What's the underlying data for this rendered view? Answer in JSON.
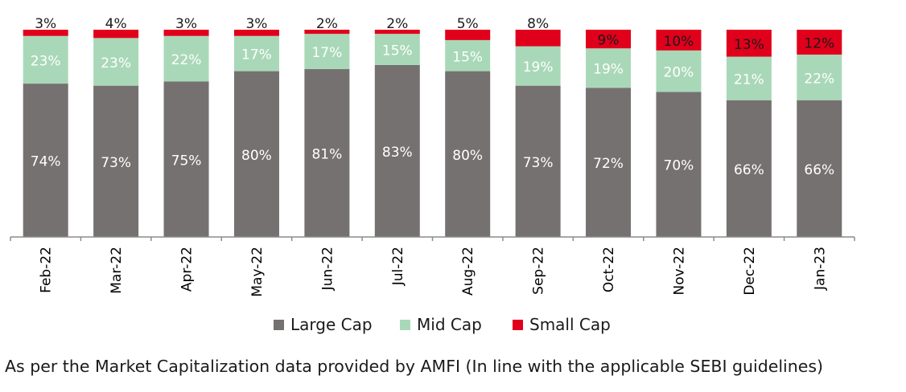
{
  "chart_data": {
    "type": "bar",
    "stacked": true,
    "categories": [
      "Feb-22",
      "Mar-22",
      "Apr-22",
      "May-22",
      "Jun-22",
      "Jul-22",
      "Aug-22",
      "Sep-22",
      "Oct-22",
      "Nov-22",
      "Dec-22",
      "Jan-23"
    ],
    "series": [
      {
        "name": "Large Cap",
        "color": "#767171",
        "values": [
          74,
          73,
          75,
          80,
          81,
          83,
          80,
          73,
          72,
          70,
          66,
          66
        ],
        "labels": [
          "74%",
          "73%",
          "75%",
          "80%",
          "81%",
          "83%",
          "80%",
          "73%",
          "72%",
          "70%",
          "66%",
          "66%"
        ]
      },
      {
        "name": "Mid Cap",
        "color": "#a9d8b8",
        "values": [
          23,
          23,
          22,
          17,
          17,
          15,
          15,
          19,
          19,
          20,
          21,
          22
        ],
        "labels": [
          "23%",
          "23%",
          "22%",
          "17%",
          "17%",
          "15%",
          "15%",
          "19%",
          "19%",
          "20%",
          "21%",
          "22%"
        ]
      },
      {
        "name": "Small Cap",
        "color": "#e0001b",
        "values": [
          3,
          4,
          3,
          3,
          2,
          2,
          5,
          8,
          9,
          10,
          13,
          12
        ],
        "labels": [
          "3%",
          "4%",
          "3%",
          "3%",
          "2%",
          "2%",
          "5%",
          "8%",
          "9%",
          "10%",
          "13%",
          "12%"
        ]
      }
    ],
    "ylim": [
      0,
      100
    ],
    "legend_position": "bottom"
  },
  "footnote": "As per the Market Capitalization data provided by AMFI (In line with the applicable SEBI guidelines)"
}
